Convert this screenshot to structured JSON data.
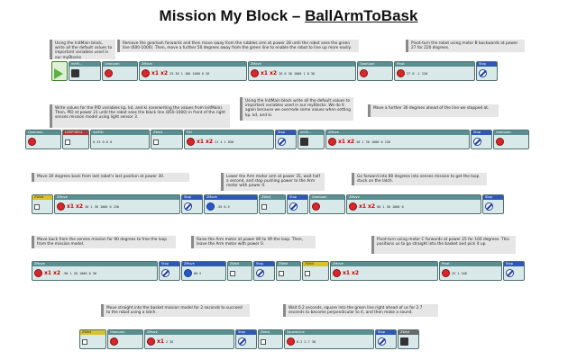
{
  "title": {
    "prefix": "Mission My Block – ",
    "name": "BallArmToBask"
  },
  "comments": [
    "Using the InitMain block, write all the default values to important variables used in our myBlocks",
    "Remove the gearlash forwards and then move away from the rubbles arm at power 28 until the robot sees the green line (600-1000). Then, move a further 50 degrees away from the green line to enable the robot to line up more easily.",
    "Pivot-turn the robot using motor B backwards at power 27 for 220 degrees.",
    "Write values for the PID variables kp, kd, and ki (overwriting the values from InitMain). Then, PID at power 21 until the robot sees the black line (850-1000) in front of the right senses mission model using light sensor 3.",
    "Using the InitMain block write all the default values to important variables used in our myBlocks. We do it again because we overrode some values when setting kp, kd, and ki.",
    "Move a further 30 degrees ahead of the line we stopped at.",
    "Move 30 degrees back from last robot's last position at power 30.",
    "Lower the Arm motor arm at power 35, wait half a second, and stop pushing power to the Arm motor with power 0.",
    "Go forward into 80 degrees into senses mission to get the loop stuck on the latch.",
    "Move back from the senses mission for 90 degrees to free the loop from the mission model.",
    "Raise the Arm motor at power 80 to lift the loop. Then, leave the Arm motor with power 0.",
    "Pivot-turn using motor C forwards at power 25 for 160 degrees. This positions us to go straight into the basket and pick it up.",
    "Move straight into the basket mission model for 2 seconds to succeed to the robot using a latch.",
    "Wait 0.2 seconds, square into the green line right ahead of us for 2.7 seconds to become perpendicular to it, and then make a sound."
  ],
  "blocks": {
    "initmain": "InitM...",
    "gearlash": "GearLash",
    "zmove": "ZMove",
    "stop": "Stop",
    "pivot": "Pivot",
    "setpid": "SetPID",
    "zwait": "ZWait",
    "pid": "PID",
    "squareline": "SquareLine",
    "loop_decl": "LOOP DECL"
  },
  "values": {
    "r1a": "25  30  1  100  1000  0  30",
    "r1b": "28  0  30  1000  1  8  30",
    "r1c": "27  0  -1  220",
    "r2a": "0.33  0.8  0",
    "r2b": "21  4  1  850",
    "r2c": "30  1  30  1000  0  230",
    "r3a": "30  1  30  1000  0  230",
    "r3b": "-35  0.5",
    "r3c": "80  1  30  1000  0",
    "r4a": "-90  1  30  1000  0  30",
    "r4b": "80  0",
    "r4c": "25  1  160",
    "r5a": "2  30",
    "r5b": "0.2  2.7  30"
  },
  "mult_labels": {
    "x1": "x1",
    "x2": "x2",
    "hash": "#"
  }
}
